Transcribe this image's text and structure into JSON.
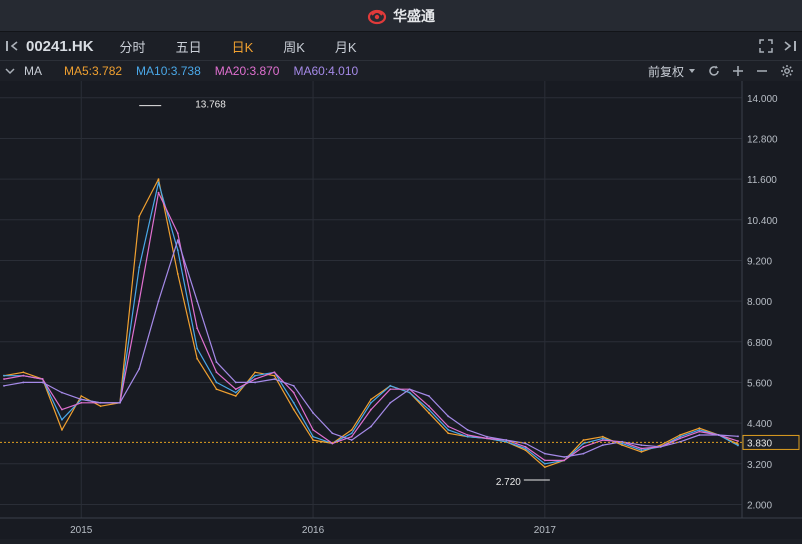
{
  "app": {
    "brand": "华盛通"
  },
  "toolbar": {
    "symbol": "00241.HK",
    "tabs": [
      "分时",
      "五日",
      "日K",
      "周K",
      "月K"
    ],
    "active_tab": "日K"
  },
  "indicator_bar": {
    "label": "MA",
    "items": [
      {
        "text": "MA5:3.782",
        "color": "#f0a030"
      },
      {
        "text": "MA10:3.738",
        "color": "#4aa8e8"
      },
      {
        "text": "MA20:3.870",
        "color": "#e070d0"
      },
      {
        "text": "MA60:4.010",
        "color": "#a58ae8"
      }
    ],
    "adjust": "前复权"
  },
  "chart_data": {
    "type": "line",
    "title": "",
    "symbol": "00241.HK",
    "x": [
      "2014-09",
      "2014-10",
      "2014-11",
      "2014-12",
      "2015-01",
      "2015-02",
      "2015-03",
      "2015-04",
      "2015-05",
      "2015-06",
      "2015-07",
      "2015-08",
      "2015-09",
      "2015-10",
      "2015-11",
      "2015-12",
      "2016-01",
      "2016-02",
      "2016-03",
      "2016-04",
      "2016-05",
      "2016-06",
      "2016-07",
      "2016-08",
      "2016-09",
      "2016-10",
      "2016-11",
      "2016-12",
      "2017-01",
      "2017-02",
      "2017-03",
      "2017-04",
      "2017-05",
      "2017-06",
      "2017-07",
      "2017-08",
      "2017-09",
      "2017-10",
      "2017-11"
    ],
    "series": [
      {
        "name": "MA5",
        "color": "#f0a030",
        "values": [
          5.8,
          5.9,
          5.7,
          4.2,
          5.2,
          4.9,
          5.0,
          10.5,
          11.6,
          8.8,
          6.3,
          5.4,
          5.2,
          5.9,
          5.8,
          4.8,
          3.9,
          3.8,
          4.2,
          5.1,
          5.5,
          5.3,
          4.7,
          4.1,
          4.0,
          3.95,
          3.85,
          3.6,
          3.1,
          3.3,
          3.9,
          4.0,
          3.75,
          3.55,
          3.75,
          4.05,
          4.25,
          4.05,
          3.78
        ]
      },
      {
        "name": "MA10",
        "color": "#4aa8e8",
        "values": [
          5.8,
          5.8,
          5.7,
          4.5,
          5.1,
          5.0,
          5.0,
          9.0,
          11.5,
          9.5,
          6.6,
          5.6,
          5.3,
          5.8,
          5.9,
          5.0,
          4.0,
          3.8,
          4.1,
          5.0,
          5.5,
          5.3,
          4.8,
          4.2,
          4.0,
          3.95,
          3.85,
          3.65,
          3.2,
          3.3,
          3.8,
          3.95,
          3.8,
          3.6,
          3.7,
          4.0,
          4.2,
          4.05,
          3.74
        ]
      },
      {
        "name": "MA20",
        "color": "#e070d0",
        "values": [
          5.7,
          5.8,
          5.7,
          4.8,
          5.0,
          5.0,
          5.0,
          8.0,
          11.2,
          10.0,
          7.2,
          5.9,
          5.4,
          5.7,
          5.9,
          5.3,
          4.2,
          3.8,
          4.0,
          4.8,
          5.4,
          5.4,
          4.9,
          4.3,
          4.05,
          3.95,
          3.9,
          3.7,
          3.3,
          3.3,
          3.7,
          3.9,
          3.85,
          3.65,
          3.7,
          3.95,
          4.15,
          4.05,
          3.87
        ]
      },
      {
        "name": "MA60",
        "color": "#a58ae8",
        "values": [
          5.5,
          5.6,
          5.6,
          5.3,
          5.1,
          5.0,
          5.0,
          6.0,
          8.0,
          9.8,
          8.0,
          6.2,
          5.6,
          5.6,
          5.7,
          5.5,
          4.7,
          4.1,
          3.9,
          4.3,
          5.0,
          5.4,
          5.2,
          4.6,
          4.2,
          4.0,
          3.9,
          3.8,
          3.5,
          3.4,
          3.5,
          3.75,
          3.85,
          3.75,
          3.7,
          3.85,
          4.05,
          4.05,
          4.01
        ]
      }
    ],
    "ylim": [
      1.6,
      14.2
    ],
    "y_ticks": [
      "14.000",
      "12.800",
      "11.600",
      "10.400",
      "9.200",
      "8.000",
      "6.800",
      "5.600",
      "4.400",
      "3.200",
      "2.000"
    ],
    "x_ticks": [
      "2015",
      "2016",
      "2017"
    ],
    "annotations": {
      "high": {
        "label": "13.768",
        "value": 13.768,
        "x": "2015-04"
      },
      "low": {
        "label": "2.720",
        "value": 2.72,
        "x": "2017-01"
      },
      "last": {
        "label": "3.830",
        "value": 3.83
      }
    },
    "grid": true
  }
}
